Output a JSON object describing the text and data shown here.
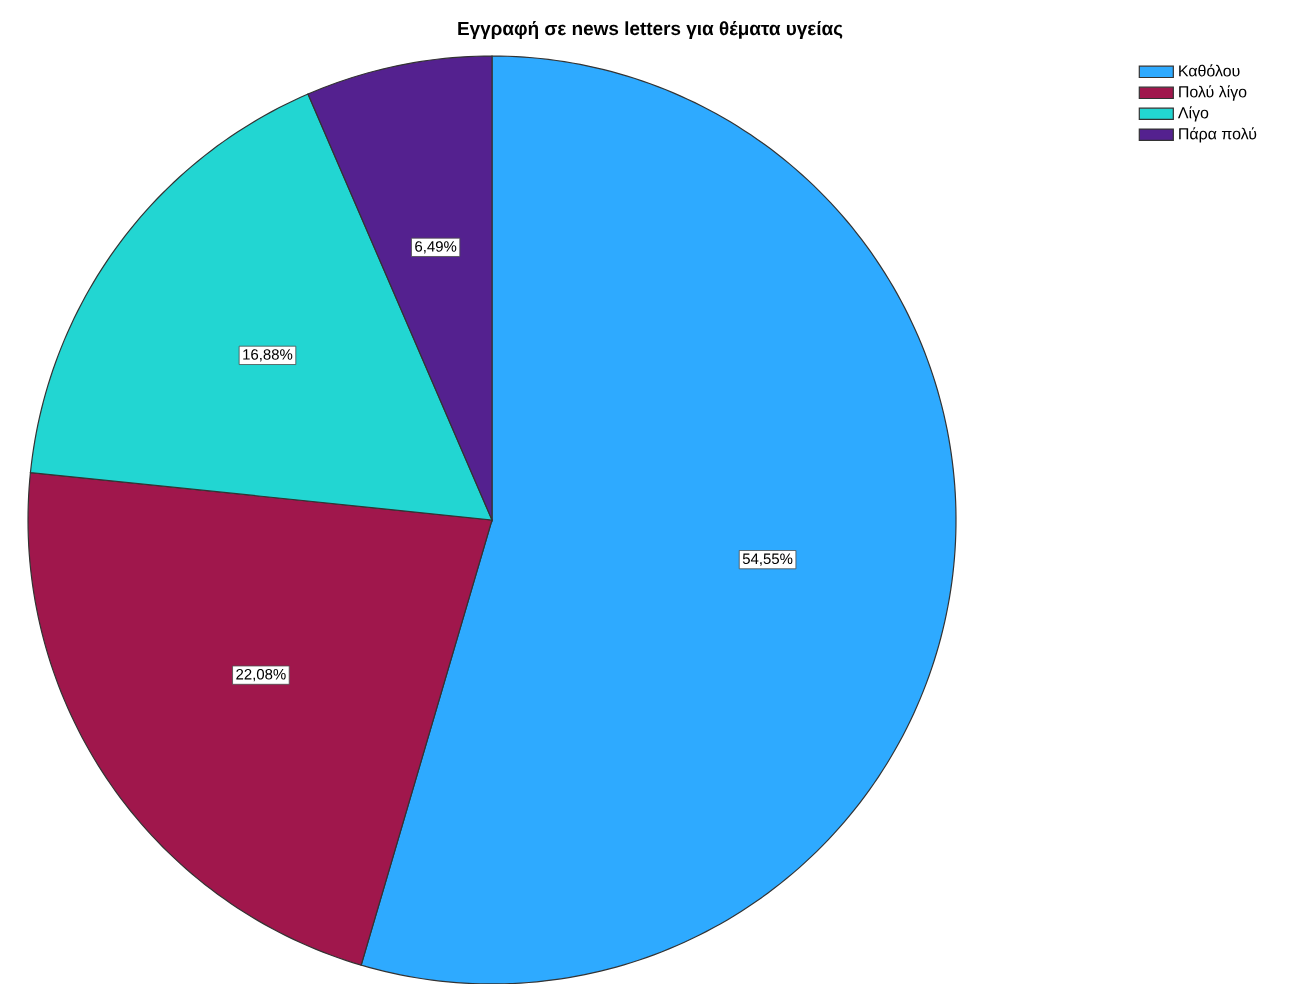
{
  "chart_data": {
    "type": "pie",
    "title": "Εγγραφή σε news letters για θέματα υγείας",
    "categories": [
      "Καθόλου",
      "Πολύ λίγο",
      "Λίγο",
      "Πάρα πολύ"
    ],
    "values": [
      54.55,
      22.08,
      16.88,
      6.49
    ],
    "value_labels": [
      "54,55%",
      "22,08%",
      "16,88%",
      "6,49%"
    ],
    "colors": [
      "#2eaaff",
      "#a0174c",
      "#22d6d2",
      "#54218f"
    ],
    "legend": "top right"
  }
}
